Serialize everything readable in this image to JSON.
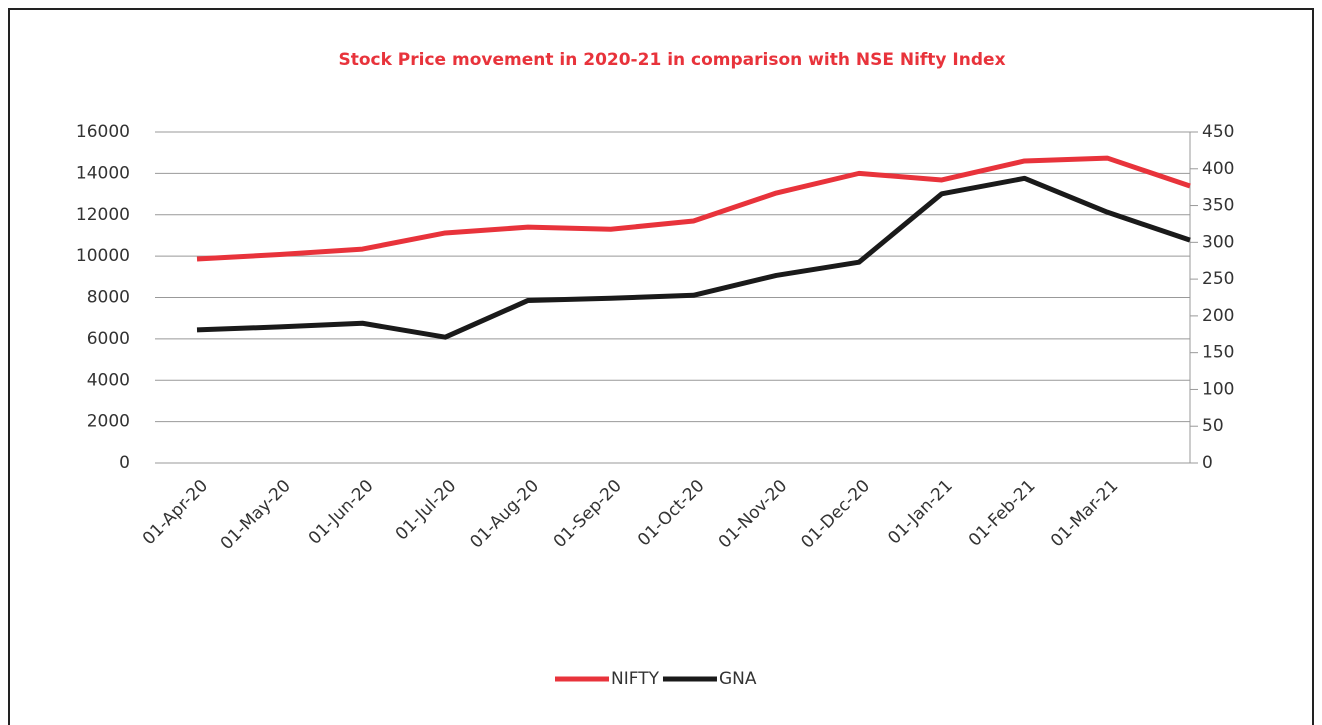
{
  "chart_data": {
    "type": "line",
    "title": "Stock Price movement in 2020-21 in comparison with NSE Nifty Index",
    "categories": [
      "01-Apr-20",
      "01-May-20",
      "01-Jun-20",
      "01-Jul-20",
      "01-Aug-20",
      "01-Sep-20",
      "01-Oct-20",
      "01-Nov-20",
      "01-Dec-20",
      "01-Jan-21",
      "01-Feb-21",
      "01-Mar-21",
      null
    ],
    "series": [
      {
        "name": "NIFTY",
        "color": "#e8333b",
        "values": [
          9860,
          10080,
          10340,
          11120,
          11400,
          11300,
          11700,
          13050,
          14000,
          13680,
          14600,
          14740,
          13390
        ]
      },
      {
        "name": "GNA",
        "color": "#1a1a1a",
        "axis": "y2",
        "values": [
          181,
          185,
          190,
          171,
          221,
          224,
          228,
          255,
          273,
          366,
          387,
          341,
          303
        ]
      }
    ],
    "ylim": [
      0,
      16000
    ],
    "yticks": [
      0,
      2000,
      4000,
      6000,
      8000,
      10000,
      12000,
      14000,
      16000
    ],
    "y2lim": [
      0,
      450
    ],
    "y2ticks": [
      0,
      50,
      100,
      150,
      200,
      250,
      300,
      350,
      400,
      450
    ],
    "grid": true,
    "legend": "bottom"
  }
}
